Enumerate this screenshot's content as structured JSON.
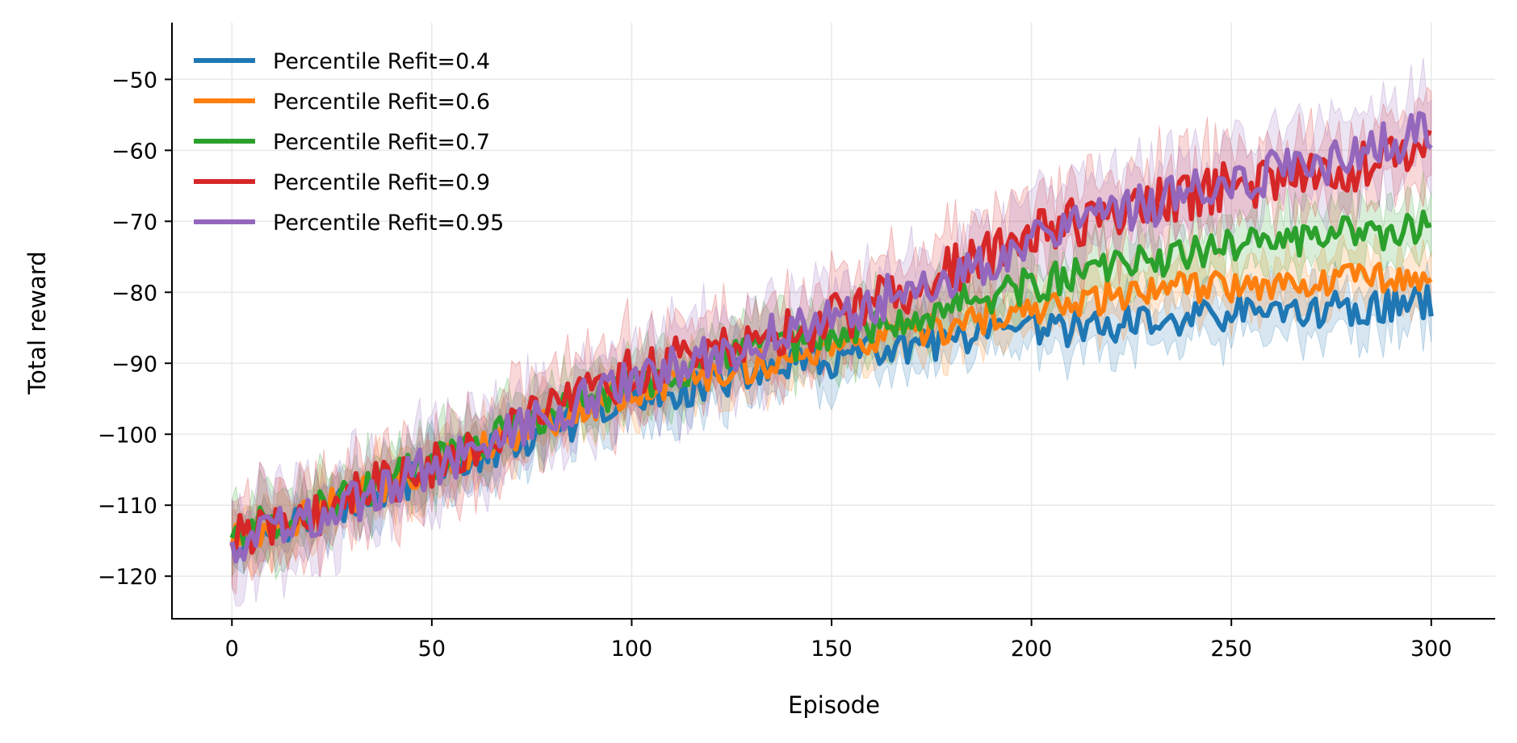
{
  "chart_data": {
    "type": "line",
    "title": "",
    "xlabel": "Episode",
    "ylabel": "Total reward",
    "xlim": [
      -15,
      316
    ],
    "ylim": [
      -126,
      -42
    ],
    "xticks": [
      0,
      50,
      100,
      150,
      200,
      250,
      300
    ],
    "yticks": [
      -120,
      -110,
      -100,
      -90,
      -80,
      -70,
      -60,
      -50
    ],
    "grid": true,
    "legend_position": "top-left",
    "shaded_band": "run-to-run variability around each mean line",
    "series": [
      {
        "name": "Percentile Refit=0.4",
        "color": "#1f77b4",
        "x": [
          0,
          25,
          50,
          75,
          100,
          125,
          150,
          175,
          200,
          225,
          250,
          275,
          300
        ],
        "values": [
          -115,
          -110.5,
          -105.5,
          -100.5,
          -95.5,
          -92,
          -89.5,
          -87.5,
          -85.5,
          -84.5,
          -83,
          -82.5,
          -81.5
        ],
        "noise": 2.5,
        "band": 3.5
      },
      {
        "name": "Percentile Refit=0.6",
        "color": "#ff7f0e",
        "x": [
          0,
          25,
          50,
          75,
          100,
          125,
          150,
          175,
          200,
          225,
          250,
          275,
          300
        ],
        "values": [
          -115,
          -110,
          -104.5,
          -99,
          -94,
          -91,
          -88,
          -85.5,
          -82.5,
          -80,
          -79,
          -78,
          -77.5
        ],
        "noise": 2.3,
        "band": 3.5
      },
      {
        "name": "Percentile Refit=0.7",
        "color": "#2ca02c",
        "x": [
          0,
          25,
          50,
          75,
          100,
          125,
          150,
          175,
          200,
          225,
          250,
          275,
          300
        ],
        "values": [
          -114,
          -109.5,
          -104,
          -98,
          -93,
          -89.5,
          -86,
          -82.5,
          -79,
          -76,
          -73.5,
          -72,
          -71
        ],
        "noise": 2.5,
        "band": 4
      },
      {
        "name": "Percentile Refit=0.9",
        "color": "#d62728",
        "x": [
          0,
          25,
          50,
          75,
          100,
          125,
          150,
          175,
          200,
          225,
          250,
          275,
          300
        ],
        "values": [
          -115,
          -110,
          -104,
          -97.5,
          -91.5,
          -87.5,
          -84,
          -78,
          -72,
          -68,
          -65,
          -63,
          -60
        ],
        "noise": 3.5,
        "band": 5
      },
      {
        "name": "Percentile Refit=0.95",
        "color": "#9467bd",
        "x": [
          0,
          25,
          50,
          75,
          100,
          125,
          150,
          175,
          200,
          225,
          250,
          275,
          300
        ],
        "values": [
          -115,
          -111,
          -104.5,
          -98,
          -92.5,
          -88,
          -83.5,
          -78.5,
          -73,
          -68.5,
          -64.5,
          -61.5,
          -57
        ],
        "noise": 3.2,
        "band": 5.5
      }
    ]
  }
}
